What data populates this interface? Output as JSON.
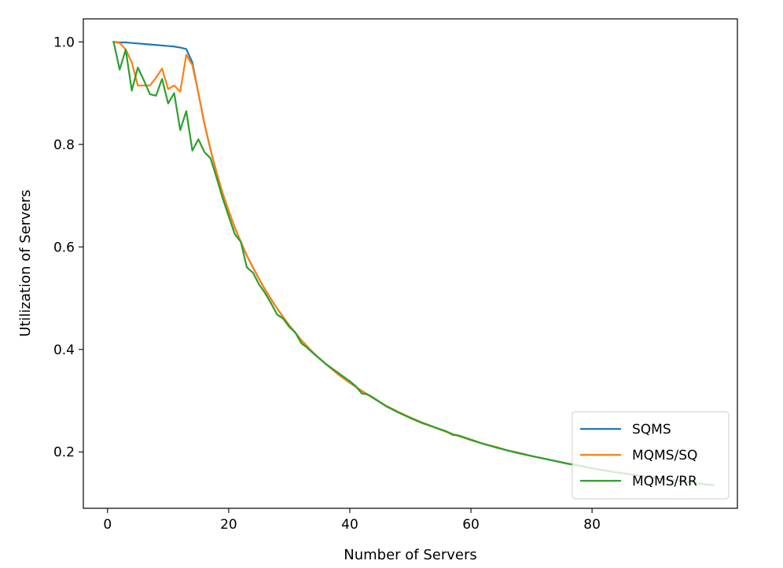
{
  "chart_data": {
    "type": "line",
    "title": "",
    "xlabel": "Number of Servers",
    "ylabel": "Utilization of Servers",
    "xlim": [
      -4,
      104
    ],
    "ylim": [
      0.09,
      1.045
    ],
    "xticks": [
      {
        "value": 0,
        "label": "0"
      },
      {
        "value": 20,
        "label": "20"
      },
      {
        "value": 40,
        "label": "40"
      },
      {
        "value": 60,
        "label": "60"
      },
      {
        "value": 80,
        "label": "80"
      }
    ],
    "yticks": [
      {
        "value": 0.2,
        "label": "0.2"
      },
      {
        "value": 0.4,
        "label": "0.4"
      },
      {
        "value": 0.6,
        "label": "0.6"
      },
      {
        "value": 0.8,
        "label": "0.8"
      },
      {
        "value": 1.0,
        "label": "1.0"
      }
    ],
    "grid": false,
    "legend_position": "lower-right",
    "series": [
      {
        "name": "SQMS",
        "color": "#1f77b4",
        "x": [
          1,
          2,
          3,
          4,
          5,
          6,
          7,
          8,
          9,
          10,
          11,
          12,
          13,
          14,
          15,
          16,
          17,
          18,
          19,
          20,
          21,
          22,
          23,
          24,
          25,
          26,
          27,
          28,
          29,
          30,
          32,
          34,
          36,
          38,
          40,
          42,
          44,
          46,
          48,
          50,
          52,
          54,
          56,
          58,
          60,
          62,
          64,
          66,
          68,
          70,
          72,
          74,
          76,
          78,
          80,
          82,
          84,
          86,
          88,
          90,
          92,
          94,
          96,
          98,
          100
        ],
        "values": [
          1.0,
          0.999,
          0.999,
          0.998,
          0.997,
          0.996,
          0.995,
          0.994,
          0.993,
          0.992,
          0.991,
          0.989,
          0.986,
          0.96,
          0.9,
          0.84,
          0.79,
          0.745,
          0.705,
          0.67,
          0.638,
          0.61,
          0.583,
          0.56,
          0.538,
          0.517,
          0.498,
          0.48,
          0.463,
          0.447,
          0.418,
          0.393,
          0.372,
          0.352,
          0.335,
          0.319,
          0.304,
          0.29,
          0.278,
          0.267,
          0.257,
          0.248,
          0.239,
          0.231,
          0.223,
          0.216,
          0.21,
          0.203,
          0.198,
          0.192,
          0.187,
          0.182,
          0.177,
          0.173,
          0.168,
          0.164,
          0.16,
          0.157,
          0.153,
          0.15,
          0.147,
          0.144,
          0.141,
          0.138,
          0.135
        ]
      },
      {
        "name": "MQMS/SQ",
        "color": "#ff7f0e",
        "x": [
          1,
          2,
          3,
          4,
          5,
          6,
          7,
          8,
          9,
          10,
          11,
          12,
          13,
          14,
          15,
          16,
          17,
          18,
          19,
          20,
          21,
          22,
          23,
          24,
          25,
          26,
          27,
          28,
          29,
          30,
          32,
          34,
          36,
          38,
          40,
          42,
          44,
          46,
          48,
          50,
          52,
          54,
          56,
          58,
          60,
          62,
          64,
          66,
          68,
          70,
          72,
          74,
          76,
          78,
          80,
          82,
          84,
          86,
          88,
          90,
          92,
          94,
          96,
          98,
          100
        ],
        "values": [
          1.0,
          0.998,
          0.985,
          0.96,
          0.915,
          0.915,
          0.915,
          0.93,
          0.948,
          0.908,
          0.915,
          0.903,
          0.975,
          0.955,
          0.9,
          0.84,
          0.79,
          0.745,
          0.705,
          0.67,
          0.638,
          0.61,
          0.583,
          0.56,
          0.538,
          0.517,
          0.498,
          0.48,
          0.463,
          0.447,
          0.418,
          0.393,
          0.372,
          0.352,
          0.335,
          0.319,
          0.304,
          0.29,
          0.278,
          0.267,
          0.257,
          0.248,
          0.239,
          0.231,
          0.223,
          0.216,
          0.21,
          0.203,
          0.198,
          0.192,
          0.187,
          0.182,
          0.177,
          0.173,
          0.168,
          0.164,
          0.16,
          0.157,
          0.153,
          0.15,
          0.147,
          0.144,
          0.141,
          0.138,
          0.135
        ]
      },
      {
        "name": "MQMS/RR",
        "color": "#2ca02c",
        "x": [
          1,
          2,
          3,
          4,
          5,
          6,
          7,
          8,
          9,
          10,
          11,
          12,
          13,
          14,
          15,
          16,
          17,
          18,
          19,
          20,
          21,
          22,
          23,
          24,
          25,
          26,
          27,
          28,
          29,
          30,
          31,
          32,
          33,
          34,
          36,
          38,
          40,
          41,
          42,
          43,
          44,
          46,
          48,
          50,
          52,
          54,
          56,
          57,
          58,
          60,
          62,
          64,
          66,
          68,
          70,
          72,
          74,
          76,
          78,
          80,
          82,
          84,
          86,
          88,
          90,
          92,
          94,
          96,
          98,
          100
        ],
        "values": [
          1.0,
          0.946,
          0.985,
          0.905,
          0.95,
          0.925,
          0.898,
          0.895,
          0.928,
          0.88,
          0.9,
          0.828,
          0.865,
          0.788,
          0.81,
          0.785,
          0.773,
          0.735,
          0.695,
          0.66,
          0.625,
          0.61,
          0.56,
          0.55,
          0.527,
          0.51,
          0.49,
          0.468,
          0.46,
          0.444,
          0.433,
          0.412,
          0.403,
          0.392,
          0.372,
          0.355,
          0.338,
          0.328,
          0.314,
          0.312,
          0.305,
          0.289,
          0.277,
          0.266,
          0.256,
          0.248,
          0.24,
          0.233,
          0.232,
          0.224,
          0.216,
          0.209,
          0.203,
          0.197,
          0.192,
          0.187,
          0.182,
          0.177,
          0.173,
          0.168,
          0.164,
          0.16,
          0.157,
          0.153,
          0.15,
          0.147,
          0.144,
          0.141,
          0.138,
          0.135
        ]
      }
    ]
  }
}
